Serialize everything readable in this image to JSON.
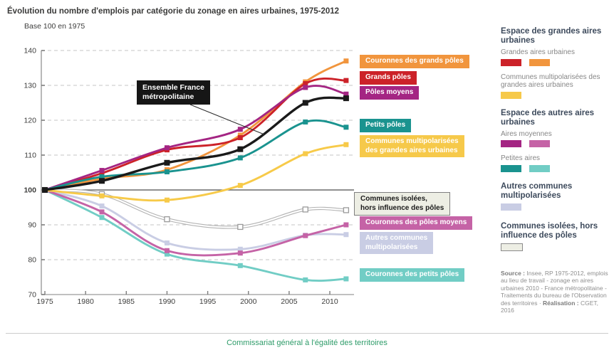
{
  "chart_data": {
    "type": "line",
    "title": "Évolution du nombre d'emplois par catégorie du zonage en aires urbaines, 1975-2012",
    "subtitle": "Base 100 en 1975",
    "y_ticks": [
      140,
      130,
      120,
      110,
      100,
      90,
      80,
      70
    ],
    "x_ticks": [
      1975,
      1980,
      1985,
      1990,
      1995,
      2000,
      2005,
      2010
    ],
    "ylim": [
      70,
      140
    ],
    "xlim": [
      1975,
      2013
    ],
    "baseline": 100,
    "grid": "dashed-horizontal",
    "legend_position": "right",
    "x": [
      1975,
      1982,
      1990,
      1999,
      2007,
      2012
    ],
    "annotation": {
      "text": "Ensemble France métropolitaine",
      "lines": [
        "Ensemble France",
        "métropolitaine"
      ]
    },
    "series": [
      {
        "id": "autres-communes-multipolarisees",
        "label": "Autres communes multipolarisées",
        "label_lines": [
          "Autres communes",
          "multipolarisées"
        ],
        "color": "#c9cde4",
        "label_bg": "#c9cde4",
        "label_color": "#ffffff",
        "values": [
          100,
          95.4,
          84.8,
          83.0,
          87.0,
          87.2
        ]
      },
      {
        "id": "couronnes-petits-poles",
        "label": "Couronnes des petits pôles",
        "color": "#71cdc5",
        "label_bg": "#71cdc5",
        "label_color": "#ffffff",
        "values": [
          100,
          92.1,
          81.6,
          78.3,
          74.2,
          74.5
        ]
      },
      {
        "id": "couronnes-poles-moyens",
        "label": "Couronnes des pôles moyens",
        "color": "#c563a6",
        "label_bg": "#c563a6",
        "label_color": "#ffffff",
        "values": [
          100,
          93.7,
          82.6,
          81.9,
          86.9,
          90.0
        ]
      },
      {
        "id": "communes-isolees",
        "label": "Communes isolées, hors influence des pôles",
        "label_lines": [
          "Communes isolées,",
          "hors influence des pôles"
        ],
        "color": "#b2b2b2",
        "style": "double",
        "label_bg": "#edeee4",
        "label_color": "#1a1a1a",
        "values": [
          100,
          98.8,
          91.6,
          89.4,
          94.4,
          94.2
        ]
      },
      {
        "id": "communes-multipolarisees-grandes-aires",
        "label": "Communes multipolarisées des grandes aires urbaines",
        "label_lines": [
          "Communes multipolarisées",
          "des grandes aires urbaines"
        ],
        "color": "#f7ca49",
        "label_bg": "#f6c94a",
        "label_color": "#ffffff",
        "values": [
          100,
          98.3,
          97.1,
          101.3,
          110.4,
          113.0
        ]
      },
      {
        "id": "couronnes-grands-poles",
        "label": "Couronnes des grands pôles",
        "color": "#f1953d",
        "label_bg": "#f1953d",
        "label_color": "#ffffff",
        "values": [
          100,
          103.2,
          105.8,
          115.7,
          131.0,
          137.0
        ]
      },
      {
        "id": "grands-poles",
        "label": "Grands pôles",
        "color": "#cc2229",
        "label_bg": "#cc2229",
        "label_color": "#ffffff",
        "values": [
          100,
          104.8,
          111.5,
          115.0,
          130.5,
          131.4
        ]
      },
      {
        "id": "poles-moyens",
        "label": "Pôles moyens",
        "color": "#a42583",
        "label_bg": "#a42583",
        "label_color": "#ffffff",
        "values": [
          100,
          105.6,
          112.1,
          117.4,
          129.4,
          127.5
        ]
      },
      {
        "id": "petits-poles",
        "label": "Petits pôles",
        "color": "#1a938f",
        "label_bg": "#1a938f",
        "label_color": "#ffffff",
        "values": [
          100,
          103.8,
          105.2,
          109.2,
          119.5,
          118.0
        ]
      },
      {
        "id": "ensemble-france-metropolitaine",
        "label": "Ensemble France métropolitaine",
        "color": "#1a1a1a",
        "values": [
          100,
          102.6,
          107.8,
          111.7,
          125.0,
          126.3
        ]
      }
    ]
  },
  "sidebar": {
    "groups": [
      {
        "heading": "Espace des grandes aires urbaines",
        "items": [
          {
            "label": "Grandes aires urbaines",
            "swatches": [
              "#cc2229",
              "#f1953d"
            ]
          },
          {
            "label": "Communes multipolarisées des grandes aires urbaines",
            "swatches": [
              "#f6c94a"
            ]
          }
        ]
      },
      {
        "heading": "Espace des autres aires urbaines",
        "items": [
          {
            "label": "Aires moyennes",
            "swatches": [
              "#a42583",
              "#c563a6"
            ]
          },
          {
            "label": "Petites aires",
            "swatches": [
              "#1a938f",
              "#71cdc5"
            ]
          }
        ]
      },
      {
        "heading": "Autres communes multipolarisées",
        "items": [
          {
            "label": "",
            "swatches": [
              "#c9cde4"
            ]
          }
        ]
      },
      {
        "heading": "Communes isolées, hors influence des pôles",
        "items": [
          {
            "label": "",
            "swatches": [
              "#edeee4"
            ],
            "bordered": true
          }
        ]
      }
    ],
    "source": {
      "bold1": "Source :",
      "text1": " Insee, RP 1975-2012, emplois au lieu de travail - zonage en aires urbaines 2010 - France métropolitaine - Traitements du bureau de l'Observation des territoires · ",
      "bold2": "Réalisation :",
      "text2": " CGET, 2016"
    }
  },
  "footer": {
    "text": "Commissariat général à l'égalité des territoires"
  }
}
